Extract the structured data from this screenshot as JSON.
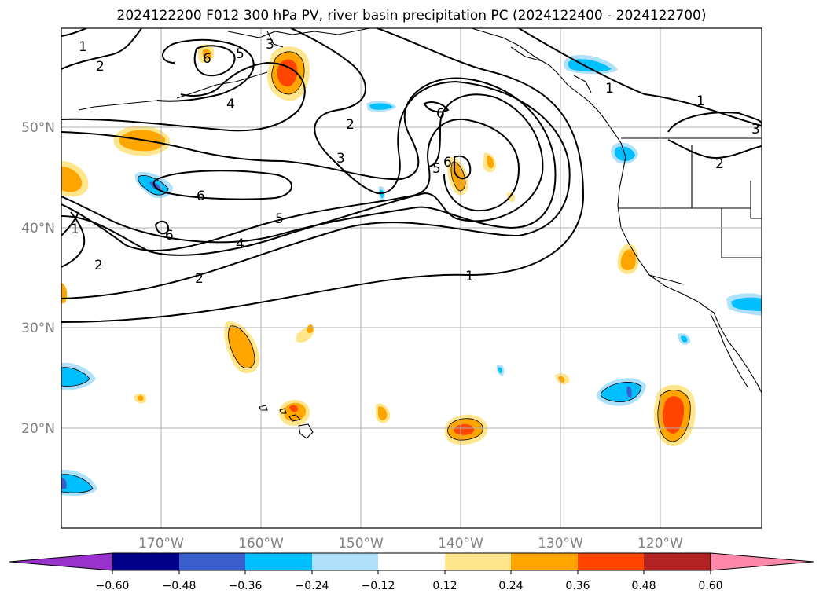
{
  "title": "2024122200 F012 300 hPa PV, river basin precipitation PC (2024122400 - 2024122700)",
  "colors": {
    "grid": "#b0b0b0",
    "tick_text": "#808080",
    "colorbar": [
      "#9932cc",
      "#00008b",
      "#3a5fcd",
      "#00bfff",
      "#afe2fa",
      "#ffffff",
      "#ffe68c",
      "#ffa500",
      "#ff4500",
      "#b22222",
      "#ff88aa"
    ]
  },
  "map": {
    "lon_labels": [
      "170°W",
      "160°W",
      "150°W",
      "140°W",
      "130°W",
      "120°W"
    ],
    "lat_labels": [
      "50°N",
      "40°N",
      "30°N",
      "20°N"
    ],
    "contour_labels": [
      "1",
      "2",
      "6",
      "5",
      "3",
      "4",
      "2",
      "6",
      "1",
      "3",
      "2",
      "3",
      "1",
      "6",
      "5",
      "6",
      "2",
      "1",
      "6",
      "4",
      "5",
      "2",
      "1"
    ]
  },
  "colorbar": {
    "labels": [
      "−0.60",
      "−0.48",
      "−0.36",
      "−0.24",
      "−0.12",
      "0.12",
      "0.24",
      "0.36",
      "0.48",
      "0.60"
    ]
  }
}
